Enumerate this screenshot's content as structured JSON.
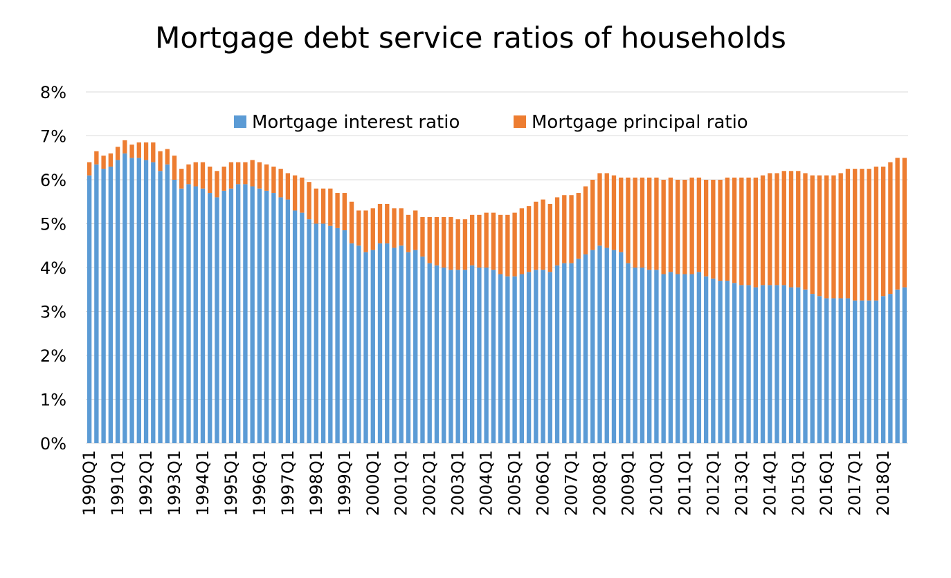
{
  "chart_data": {
    "type": "bar",
    "stacked": true,
    "title": "Mortgage debt service ratios of households",
    "xlabel": "",
    "ylabel": "",
    "ylim": [
      0,
      8
    ],
    "y_unit": "%",
    "y_ticks": [
      "0%",
      "1%",
      "2%",
      "3%",
      "4%",
      "5%",
      "6%",
      "7%",
      "8%"
    ],
    "grid": true,
    "legend_position": "top-center",
    "x_tick_labels": [
      "1990Q1",
      "1991Q1",
      "1992Q1",
      "1993Q1",
      "1994Q1",
      "1995Q1",
      "1996Q1",
      "1997Q1",
      "1998Q1",
      "1999Q1",
      "2000Q1",
      "2001Q1",
      "2002Q1",
      "2003Q1",
      "2004Q1",
      "2005Q1",
      "2006Q1",
      "2007Q1",
      "2008Q1",
      "2009Q1",
      "2010Q1",
      "2011Q1",
      "2012Q1",
      "2013Q1",
      "2014Q1",
      "2015Q1",
      "2016Q1",
      "2017Q1",
      "2018Q1"
    ],
    "categories": [
      "1990Q1",
      "1990Q2",
      "1990Q3",
      "1990Q4",
      "1991Q1",
      "1991Q2",
      "1991Q3",
      "1991Q4",
      "1992Q1",
      "1992Q2",
      "1992Q3",
      "1992Q4",
      "1993Q1",
      "1993Q2",
      "1993Q3",
      "1993Q4",
      "1994Q1",
      "1994Q2",
      "1994Q3",
      "1994Q4",
      "1995Q1",
      "1995Q2",
      "1995Q3",
      "1995Q4",
      "1996Q1",
      "1996Q2",
      "1996Q3",
      "1996Q4",
      "1997Q1",
      "1997Q2",
      "1997Q3",
      "1997Q4",
      "1998Q1",
      "1998Q2",
      "1998Q3",
      "1998Q4",
      "1999Q1",
      "1999Q2",
      "1999Q3",
      "1999Q4",
      "2000Q1",
      "2000Q2",
      "2000Q3",
      "2000Q4",
      "2001Q1",
      "2001Q2",
      "2001Q3",
      "2001Q4",
      "2002Q1",
      "2002Q2",
      "2002Q3",
      "2002Q4",
      "2003Q1",
      "2003Q2",
      "2003Q3",
      "2003Q4",
      "2004Q1",
      "2004Q2",
      "2004Q3",
      "2004Q4",
      "2005Q1",
      "2005Q2",
      "2005Q3",
      "2005Q4",
      "2006Q1",
      "2006Q2",
      "2006Q3",
      "2006Q4",
      "2007Q1",
      "2007Q2",
      "2007Q3",
      "2007Q4",
      "2008Q1",
      "2008Q2",
      "2008Q3",
      "2008Q4",
      "2009Q1",
      "2009Q2",
      "2009Q3",
      "2009Q4",
      "2010Q1",
      "2010Q2",
      "2010Q3",
      "2010Q4",
      "2011Q1",
      "2011Q2",
      "2011Q3",
      "2011Q4",
      "2012Q1",
      "2012Q2",
      "2012Q3",
      "2012Q4",
      "2013Q1",
      "2013Q2",
      "2013Q3",
      "2013Q4",
      "2014Q1",
      "2014Q2",
      "2014Q3",
      "2014Q4",
      "2015Q1",
      "2015Q2",
      "2015Q3",
      "2015Q4",
      "2016Q1",
      "2016Q2",
      "2016Q3",
      "2016Q4",
      "2017Q1",
      "2017Q2",
      "2017Q3",
      "2017Q4",
      "2018Q1",
      "2018Q2",
      "2018Q3",
      "2018Q4"
    ],
    "series": [
      {
        "name": "Mortgage interest ratio",
        "color": "#5b9bd5",
        "values": [
          6.1,
          6.35,
          6.25,
          6.3,
          6.45,
          6.6,
          6.5,
          6.5,
          6.45,
          6.4,
          6.2,
          6.35,
          6.0,
          5.8,
          5.9,
          5.85,
          5.8,
          5.7,
          5.6,
          5.75,
          5.8,
          5.9,
          5.9,
          5.85,
          5.8,
          5.75,
          5.7,
          5.6,
          5.55,
          5.3,
          5.25,
          5.1,
          5.0,
          5.0,
          4.95,
          4.9,
          4.85,
          4.55,
          4.5,
          4.35,
          4.4,
          4.55,
          4.55,
          4.45,
          4.5,
          4.35,
          4.4,
          4.25,
          4.1,
          4.05,
          4.0,
          3.95,
          3.95,
          3.95,
          4.05,
          4.0,
          4.0,
          3.95,
          3.85,
          3.8,
          3.8,
          3.85,
          3.9,
          3.95,
          3.95,
          3.9,
          4.05,
          4.1,
          4.1,
          4.2,
          4.3,
          4.4,
          4.5,
          4.45,
          4.4,
          4.35,
          4.1,
          4.0,
          4.0,
          3.95,
          3.95,
          3.85,
          3.9,
          3.85,
          3.85,
          3.85,
          3.9,
          3.8,
          3.75,
          3.7,
          3.7,
          3.65,
          3.6,
          3.6,
          3.55,
          3.6,
          3.6,
          3.6,
          3.6,
          3.55,
          3.55,
          3.5,
          3.4,
          3.35,
          3.3,
          3.3,
          3.3,
          3.3,
          3.25,
          3.25,
          3.25,
          3.25,
          3.35,
          3.4,
          3.5,
          3.55
        ]
      },
      {
        "name": "Mortgage principal ratio",
        "color": "#ed7d31",
        "values": [
          0.3,
          0.3,
          0.3,
          0.3,
          0.3,
          0.3,
          0.3,
          0.35,
          0.4,
          0.45,
          0.45,
          0.35,
          0.55,
          0.45,
          0.45,
          0.55,
          0.6,
          0.6,
          0.6,
          0.55,
          0.6,
          0.5,
          0.5,
          0.6,
          0.6,
          0.6,
          0.6,
          0.65,
          0.6,
          0.8,
          0.8,
          0.85,
          0.8,
          0.8,
          0.85,
          0.8,
          0.85,
          0.95,
          0.8,
          0.95,
          0.95,
          0.9,
          0.9,
          0.9,
          0.85,
          0.85,
          0.9,
          0.9,
          1.05,
          1.1,
          1.15,
          1.2,
          1.15,
          1.15,
          1.15,
          1.2,
          1.25,
          1.3,
          1.35,
          1.4,
          1.45,
          1.5,
          1.5,
          1.55,
          1.6,
          1.55,
          1.55,
          1.55,
          1.55,
          1.5,
          1.55,
          1.6,
          1.65,
          1.7,
          1.7,
          1.7,
          1.95,
          2.05,
          2.05,
          2.1,
          2.1,
          2.15,
          2.15,
          2.15,
          2.15,
          2.2,
          2.15,
          2.2,
          2.25,
          2.3,
          2.35,
          2.4,
          2.45,
          2.45,
          2.5,
          2.5,
          2.55,
          2.55,
          2.6,
          2.65,
          2.65,
          2.65,
          2.7,
          2.75,
          2.8,
          2.8,
          2.85,
          2.95,
          3.0,
          3.0,
          3.0,
          3.05,
          2.95,
          3.0,
          3.0,
          2.95
        ]
      }
    ]
  }
}
